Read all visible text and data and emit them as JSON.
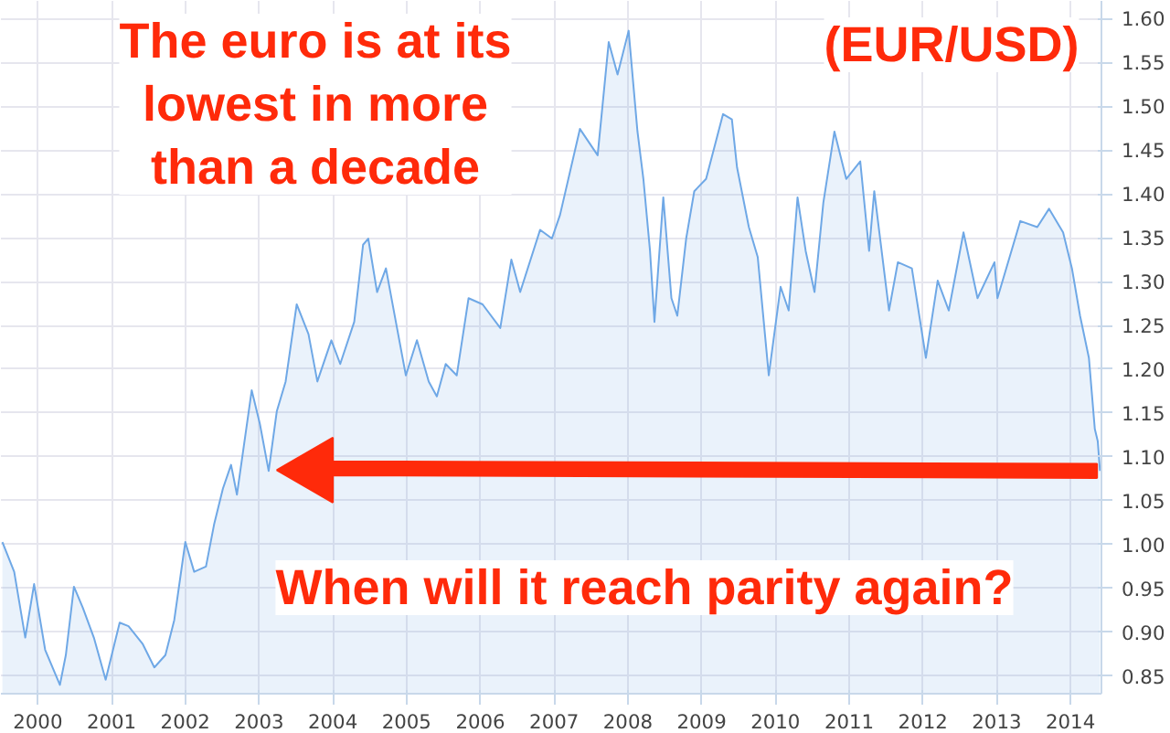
{
  "chart_data": {
    "type": "area",
    "annotations": [
      "The euro is at its lowest in more than a decade",
      "(EUR/USD)",
      "When will it reach parity again?"
    ],
    "x": [
      2000.02,
      2000.18,
      2000.33,
      2000.45,
      2000.6,
      2000.8,
      2000.88,
      2000.99,
      2001.11,
      2001.26,
      2001.42,
      2001.61,
      2001.73,
      2001.92,
      2002.08,
      2002.23,
      2002.35,
      2002.5,
      2002.62,
      2002.78,
      2002.89,
      2003.01,
      2003.12,
      2003.2,
      2003.4,
      2003.51,
      2003.63,
      2003.74,
      2003.86,
      2004.01,
      2004.17,
      2004.29,
      2004.48,
      2004.6,
      2004.79,
      2004.91,
      2004.98,
      2005.1,
      2005.22,
      2005.37,
      2005.49,
      2005.64,
      2005.8,
      2005.91,
      2006.03,
      2006.18,
      2006.34,
      2006.53,
      2006.77,
      2006.92,
      2007.04,
      2007.31,
      2007.47,
      2007.58,
      2007.85,
      2008.09,
      2008.24,
      2008.36,
      2008.51,
      2008.63,
      2008.71,
      2008.8,
      2008.86,
      2008.98,
      2009.09,
      2009.17,
      2009.29,
      2009.4,
      2009.56,
      2009.79,
      2009.91,
      2009.98,
      2010.14,
      2010.26,
      2010.41,
      2010.57,
      2010.68,
      2010.8,
      2010.91,
      2011.03,
      2011.15,
      2011.3,
      2011.46,
      2011.65,
      2011.77,
      2011.84,
      2012.04,
      2012.16,
      2012.35,
      2012.54,
      2012.7,
      2012.85,
      2013.05,
      2013.24,
      2013.47,
      2013.51,
      2013.82,
      2014.05,
      2014.21,
      2014.4,
      2014.52,
      2014.63,
      2014.75,
      2014.83,
      2014.87,
      2014.9
    ],
    "series": [
      {
        "color": "#6fa8e6",
        "values": [
          1.003,
          0.969,
          0.894,
          0.955,
          0.88,
          0.84,
          0.874,
          0.952,
          0.928,
          0.894,
          0.846,
          0.911,
          0.907,
          0.887,
          0.86,
          0.874,
          0.914,
          1.003,
          0.969,
          0.975,
          1.023,
          1.064,
          1.091,
          1.057,
          1.176,
          1.138,
          1.084,
          1.152,
          1.186,
          1.274,
          1.24,
          1.186,
          1.233,
          1.206,
          1.254,
          1.342,
          1.349,
          1.288,
          1.315,
          1.247,
          1.193,
          1.233,
          1.186,
          1.169,
          1.206,
          1.193,
          1.281,
          1.274,
          1.247,
          1.325,
          1.288,
          1.359,
          1.349,
          1.376,
          1.474,
          1.444,
          1.573,
          1.536,
          1.586,
          1.471,
          1.417,
          1.335,
          1.254,
          1.396,
          1.281,
          1.261,
          1.349,
          1.403,
          1.417,
          1.491,
          1.485,
          1.43,
          1.362,
          1.328,
          1.193,
          1.294,
          1.267,
          1.396,
          1.335,
          1.288,
          1.39,
          1.471,
          1.417,
          1.437,
          1.335,
          1.403,
          1.267,
          1.322,
          1.315,
          1.213,
          1.301,
          1.267,
          1.356,
          1.281,
          1.322,
          1.281,
          1.369,
          1.362,
          1.383,
          1.356,
          1.315,
          1.261,
          1.213,
          1.132,
          1.118,
          1.084
        ]
      }
    ],
    "xlim": [
      2000.0,
      2014.92
    ],
    "ylim": [
      0.83,
      1.62
    ],
    "xticks": [
      {
        "value": 2000.5,
        "label": "2000"
      },
      {
        "value": 2001.5,
        "label": "2001"
      },
      {
        "value": 2002.5,
        "label": "2002"
      },
      {
        "value": 2003.5,
        "label": "2003"
      },
      {
        "value": 2004.5,
        "label": "2004"
      },
      {
        "value": 2005.5,
        "label": "2005"
      },
      {
        "value": 2006.5,
        "label": "2006"
      },
      {
        "value": 2007.5,
        "label": "2007"
      },
      {
        "value": 2008.5,
        "label": "2008"
      },
      {
        "value": 2009.5,
        "label": "2009"
      },
      {
        "value": 2010.5,
        "label": "2010"
      },
      {
        "value": 2011.5,
        "label": "2011"
      },
      {
        "value": 2012.5,
        "label": "2012"
      },
      {
        "value": 2013.5,
        "label": "2013"
      },
      {
        "value": 2014.5,
        "label": "2014"
      }
    ],
    "yticks": [
      {
        "value": 0.85,
        "label": "0.85"
      },
      {
        "value": 0.9,
        "label": "0.90"
      },
      {
        "value": 0.95,
        "label": "0.95"
      },
      {
        "value": 1.0,
        "label": "1.00"
      },
      {
        "value": 1.05,
        "label": "1.05"
      },
      {
        "value": 1.1,
        "label": "1.10"
      },
      {
        "value": 1.15,
        "label": "1.15"
      },
      {
        "value": 1.2,
        "label": "1.20"
      },
      {
        "value": 1.25,
        "label": "1.25"
      },
      {
        "value": 1.3,
        "label": "1.30"
      },
      {
        "value": 1.35,
        "label": "1.35"
      },
      {
        "value": 1.4,
        "label": "1.40"
      },
      {
        "value": 1.45,
        "label": "1.45"
      },
      {
        "value": 1.5,
        "label": "1.50"
      },
      {
        "value": 1.55,
        "label": "1.55"
      },
      {
        "value": 1.6,
        "label": "1.60"
      }
    ],
    "grid": true
  }
}
